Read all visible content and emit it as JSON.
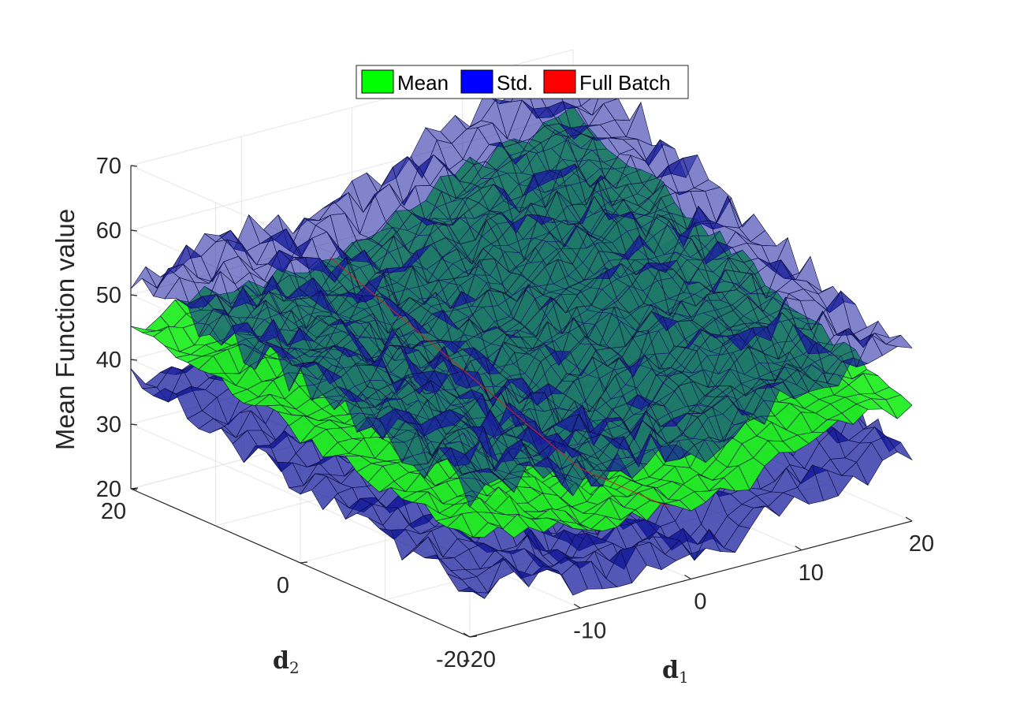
{
  "chart_data": {
    "type": "surface",
    "zlabel": "Mean Function value",
    "xlabel_main": "d",
    "xlabel_sub": "1",
    "ylabel_main": "d",
    "ylabel_sub": "2",
    "xlim": [
      -20,
      20
    ],
    "ylim": [
      -20,
      20
    ],
    "zlim": [
      20,
      70
    ],
    "x_ticks": [
      "-20",
      "-10",
      "0",
      "10",
      "20"
    ],
    "y_ticks": [
      "-20",
      "0",
      "20"
    ],
    "z_ticks": [
      "20",
      "30",
      "40",
      "50",
      "60",
      "70"
    ],
    "grid": true,
    "legend_position": "top",
    "legend": [
      {
        "name": "Mean",
        "color": "#00ff00"
      },
      {
        "name": "Std.",
        "color": "#0000ff"
      },
      {
        "name": "Full Batch",
        "color": "#ff0000"
      }
    ],
    "series": [
      {
        "name": "Mean",
        "color": "#22ee22",
        "level_at_corners": {
          "x-20_y20": 45,
          "x20_y20": 60,
          "x20_y-20": 38,
          "x-20_y-20": 35
        },
        "valley_min": 32
      },
      {
        "name": "Std.",
        "color": "#1a1f9e",
        "offset_from_mean": 8
      },
      {
        "name": "Full Batch",
        "color": "#cc2222"
      }
    ]
  }
}
